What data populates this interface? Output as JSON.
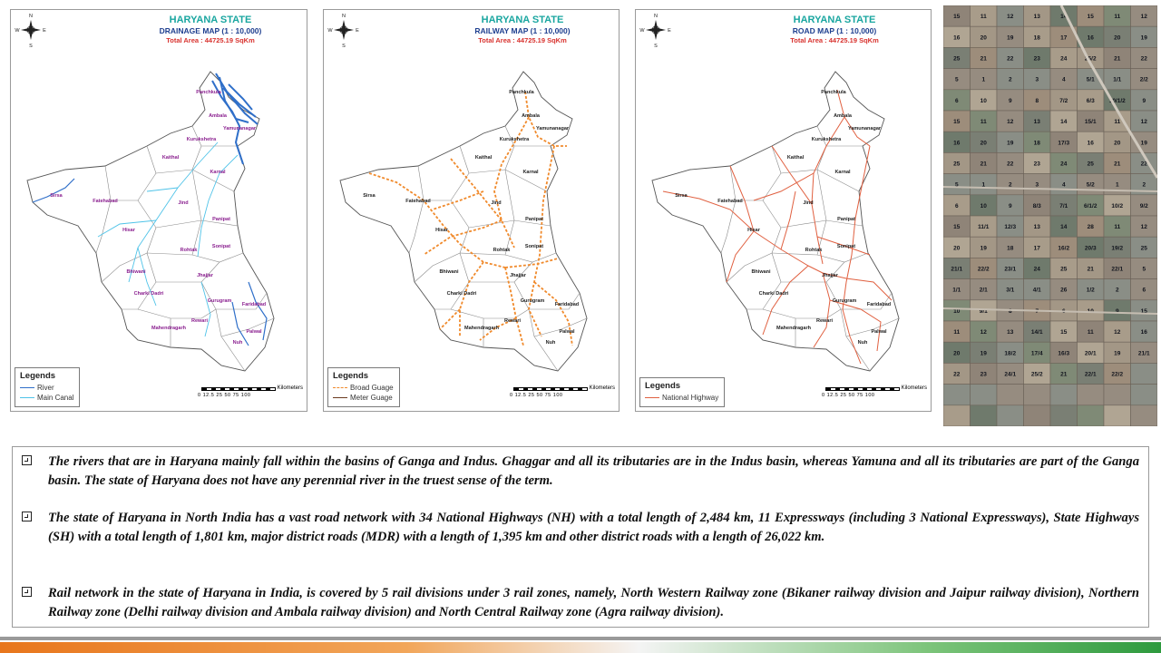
{
  "panels": {
    "drainage": {
      "state": "HARYANA STATE",
      "map_type": "DRAINAGE MAP (1 : 10,000)",
      "total_area": "Total Area : 44725.19 SqKm",
      "legend_title": "Legends",
      "legend_items": [
        {
          "label": "River",
          "color": "#2f6fc9",
          "style": "solid"
        },
        {
          "label": "Main Canal",
          "color": "#4fc3e8",
          "style": "solid"
        }
      ]
    },
    "railway": {
      "state": "HARYANA STATE",
      "map_type": "RAILWAY MAP (1 : 10,000)",
      "total_area": "Total Area : 44725.19 SqKm",
      "legend_title": "Legends",
      "legend_items": [
        {
          "label": "Broad Guage",
          "color": "#f08a2c",
          "style": "dashed"
        },
        {
          "label": "Meter Guage",
          "color": "#6b3a1f",
          "style": "solid"
        }
      ]
    },
    "road": {
      "state": "HARYANA STATE",
      "map_type": "ROAD MAP (1 : 10,000)",
      "total_area": "Total Area : 44725.19 SqKm",
      "legend_title": "Legends",
      "legend_items": [
        {
          "label": "National Highway",
          "color": "#e06040",
          "style": "solid"
        }
      ]
    }
  },
  "compass": {
    "n": "N",
    "s": "S",
    "e": "E",
    "w": "W"
  },
  "scale": {
    "ticks": "0  12.5 25     50       75      100",
    "unit": "Kilometers"
  },
  "districts": [
    "Panchkula",
    "Ambala",
    "Yamunanagar",
    "Kurukshetra",
    "Kaithal",
    "Karnal",
    "Sirsa",
    "Fatehabad",
    "Jind",
    "Panipat",
    "Hisar",
    "Sonipat",
    "Rohtak",
    "Bhiwani",
    "Jhajjar",
    "Charki Dadri",
    "Gurugram",
    "Faridabad",
    "Rewari",
    "Mahendragarh",
    "Palwal",
    "Nuh"
  ],
  "satellite_plots": [
    "15",
    "11",
    "12",
    "13",
    "14",
    "15",
    "11",
    "12",
    "16",
    "20",
    "19",
    "18",
    "17",
    "16",
    "20",
    "19",
    "25",
    "21",
    "22",
    "23",
    "24",
    "25/2",
    "21",
    "22",
    "5",
    "1",
    "2",
    "3",
    "4",
    "5/1",
    "1/1",
    "2/2",
    "6",
    "10",
    "9",
    "8",
    "7/2",
    "6/3",
    "10/1/2",
    "9",
    "15",
    "11",
    "12",
    "13",
    "14",
    "15/1",
    "11",
    "12",
    "16",
    "20",
    "19",
    "18",
    "17/3",
    "16",
    "20",
    "19",
    "25",
    "21",
    "22",
    "23",
    "24",
    "25",
    "21",
    "22",
    "5",
    "1",
    "2",
    "3",
    "4",
    "5/2",
    "1",
    "2",
    "6",
    "10",
    "9",
    "8/3",
    "7/1",
    "6/1/2",
    "10/2",
    "9/2",
    "15",
    "11/1",
    "12/3",
    "13",
    "14",
    "28",
    "11",
    "12",
    "20",
    "19",
    "18",
    "17",
    "16/2",
    "20/3",
    "19/2",
    "25",
    "21/1",
    "22/2",
    "23/1",
    "24",
    "25",
    "21",
    "22/1",
    "5",
    "1/1",
    "2/1",
    "3/1",
    "4/1",
    "26",
    "1/2",
    "2",
    "6",
    "10",
    "9/1",
    "8",
    "7",
    "6",
    "10",
    "9",
    "15",
    "11",
    "12",
    "13",
    "14/1",
    "15",
    "11",
    "12",
    "16",
    "20",
    "19",
    "18/2",
    "17/4",
    "16/3",
    "20/1",
    "19",
    "21/1",
    "22",
    "23",
    "24/1",
    "25/2",
    "21",
    "22/1",
    "22/2"
  ],
  "bullets": [
    "The rivers that are in Haryana mainly fall within the basins of Ganga and Indus. Ghaggar and all its tributaries are in the Indus basin, whereas Yamuna and all its tributaries are part of the Ganga basin. The state of Haryana does not have any perennial river in the truest sense of the term.",
    "The state of Haryana in North India has a vast road network with 34 National Highways (NH) with a total length of 2,484 km, 11 Expressways (including 3 National Expressways), State Highways (SH) with a total length of 1,801 km, major district roads (MDR) with a length of 1,395 km and other district roads with a length of 26,022 km.",
    "Rail network in the state of Haryana in India, is covered by 5 rail divisions under 3 rail zones, namely, North Western Railway zone (Bikaner railway division and Jaipur railway division), Northern Railway zone (Delhi railway division and Ambala railway division) and North Central Railway zone (Agra railway division)."
  ],
  "colors": {
    "title_state": "#1aa6a0",
    "title_map": "#1e3f8f",
    "title_area": "#d8322e",
    "district_label_drainage": "#8a1f8f",
    "boundary": "#555555"
  }
}
